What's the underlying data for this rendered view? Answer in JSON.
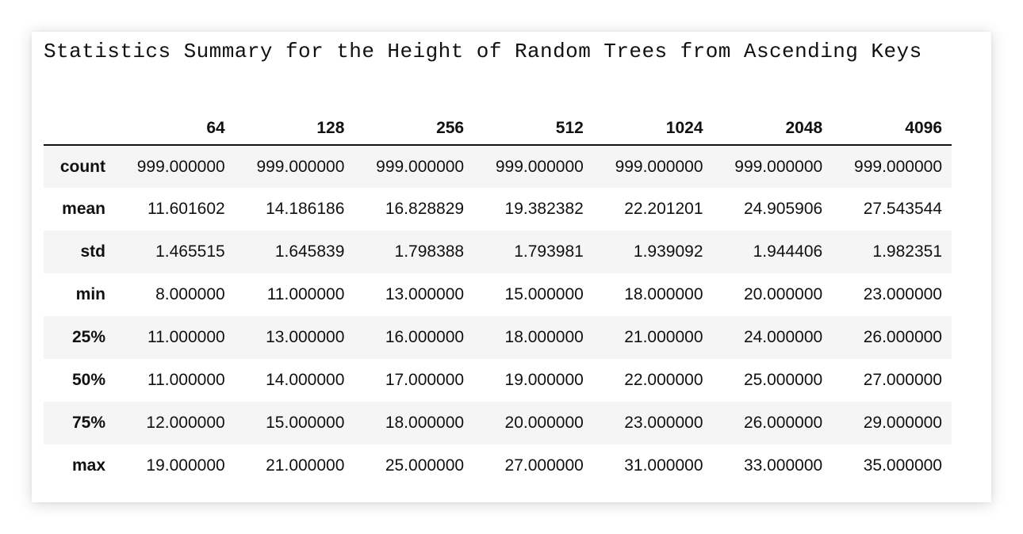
{
  "title": "Statistics Summary for the Height of Random Trees from Ascending Keys",
  "table": {
    "index_header": "",
    "columns": [
      "64",
      "128",
      "256",
      "512",
      "1024",
      "2048",
      "4096"
    ],
    "rows": [
      {
        "label": "count",
        "values": [
          "999.000000",
          "999.000000",
          "999.000000",
          "999.000000",
          "999.000000",
          "999.000000",
          "999.000000"
        ]
      },
      {
        "label": "mean",
        "values": [
          "11.601602",
          "14.186186",
          "16.828829",
          "19.382382",
          "22.201201",
          "24.905906",
          "27.543544"
        ]
      },
      {
        "label": "std",
        "values": [
          "1.465515",
          "1.645839",
          "1.798388",
          "1.793981",
          "1.939092",
          "1.944406",
          "1.982351"
        ]
      },
      {
        "label": "min",
        "values": [
          "8.000000",
          "11.000000",
          "13.000000",
          "15.000000",
          "18.000000",
          "20.000000",
          "23.000000"
        ]
      },
      {
        "label": "25%",
        "values": [
          "11.000000",
          "13.000000",
          "16.000000",
          "18.000000",
          "21.000000",
          "24.000000",
          "26.000000"
        ]
      },
      {
        "label": "50%",
        "values": [
          "11.000000",
          "14.000000",
          "17.000000",
          "19.000000",
          "22.000000",
          "25.000000",
          "27.000000"
        ]
      },
      {
        "label": "75%",
        "values": [
          "12.000000",
          "15.000000",
          "18.000000",
          "20.000000",
          "23.000000",
          "26.000000",
          "29.000000"
        ]
      },
      {
        "label": "max",
        "values": [
          "19.000000",
          "21.000000",
          "25.000000",
          "27.000000",
          "31.000000",
          "33.000000",
          "35.000000"
        ]
      }
    ]
  }
}
